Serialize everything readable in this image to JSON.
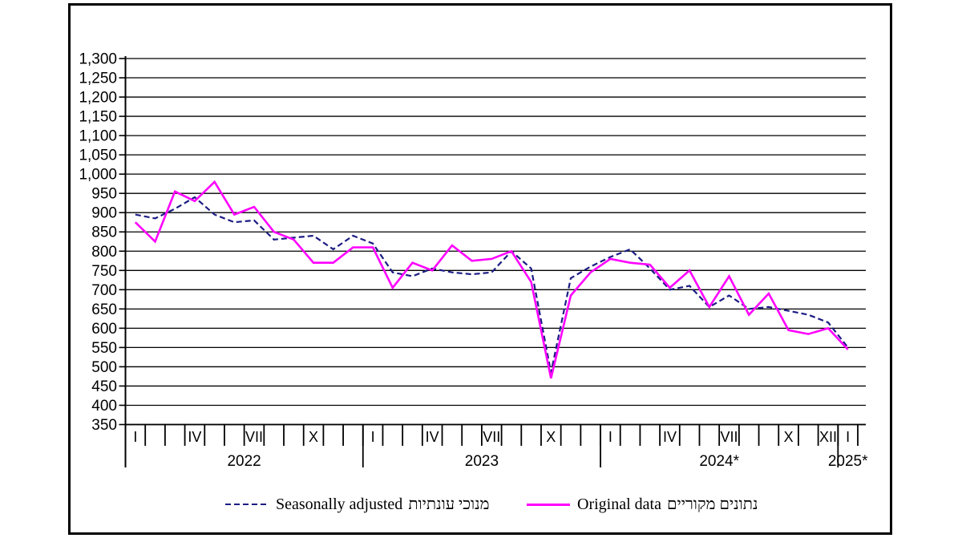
{
  "chart_data": {
    "type": "line",
    "title": "",
    "ylim": [
      350,
      1300
    ],
    "y_tick_step": 50,
    "grid": "horizontal",
    "legend_position": "bottom",
    "y_tick_labels": [
      "350",
      "400",
      "450",
      "500",
      "550",
      "600",
      "650",
      "700",
      "750",
      "800",
      "850",
      "900",
      "950",
      "1,000",
      "1,050",
      "1,100",
      "1,150",
      "1,200",
      "1,250",
      "1,300"
    ],
    "years": [
      {
        "label": "2022",
        "num_months": 12,
        "month_labels": [
          {
            "month": 1,
            "text": "I"
          },
          {
            "month": 4,
            "text": "IV"
          },
          {
            "month": 7,
            "text": "VII"
          },
          {
            "month": 10,
            "text": "X"
          }
        ]
      },
      {
        "label": "2023",
        "num_months": 12,
        "month_labels": [
          {
            "month": 1,
            "text": "I"
          },
          {
            "month": 4,
            "text": "IV"
          },
          {
            "month": 7,
            "text": "VII"
          },
          {
            "month": 10,
            "text": "X"
          }
        ]
      },
      {
        "label": "2024*",
        "num_months": 12,
        "month_labels": [
          {
            "month": 1,
            "text": "I"
          },
          {
            "month": 4,
            "text": "IV"
          },
          {
            "month": 7,
            "text": "VII"
          },
          {
            "month": 10,
            "text": "X"
          },
          {
            "month": 12,
            "text": "XII"
          }
        ]
      },
      {
        "label": "2025*",
        "num_months": 1,
        "month_labels": [
          {
            "month": 1,
            "text": "I"
          }
        ]
      }
    ],
    "series": [
      {
        "id": "seasonally-adjusted",
        "name": "Seasonally adjusted",
        "name_he": "מנוכי עונתיות",
        "color": "#1c1c84",
        "style": "dashed",
        "values": [
          895,
          885,
          910,
          940,
          895,
          875,
          880,
          830,
          835,
          840,
          805,
          840,
          820,
          745,
          735,
          755,
          745,
          740,
          745,
          800,
          755,
          485,
          730,
          760,
          785,
          805,
          755,
          700,
          710,
          655,
          685,
          650,
          655,
          645,
          635,
          615,
          550
        ]
      },
      {
        "id": "original-data",
        "name": "Original data",
        "name_he": "נתונים מקוריים",
        "color": "#ff00ff",
        "style": "solid",
        "values": [
          875,
          825,
          955,
          930,
          980,
          895,
          915,
          850,
          830,
          770,
          770,
          810,
          810,
          705,
          770,
          750,
          815,
          775,
          780,
          800,
          720,
          470,
          685,
          745,
          780,
          770,
          765,
          705,
          750,
          655,
          735,
          635,
          690,
          595,
          585,
          600,
          545
        ]
      }
    ]
  }
}
